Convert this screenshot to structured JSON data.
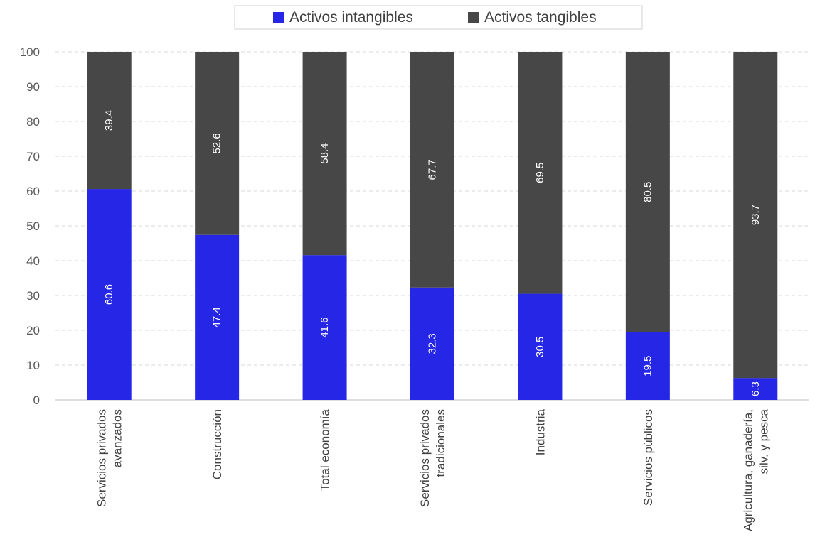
{
  "chart_data": {
    "type": "bar",
    "stacked": true,
    "orientation": "vertical",
    "categories": [
      [
        "Servicios privados",
        "avanzados"
      ],
      [
        "Construcción"
      ],
      [
        "Total economía"
      ],
      [
        "Servicios privados",
        "tradicionales"
      ],
      [
        "Industria"
      ],
      [
        "Servicios públicos"
      ],
      [
        "Agricultura, ganadería,",
        "silv. y pesca"
      ]
    ],
    "series": [
      {
        "name": "Activos intangibles",
        "color": "#2626E6",
        "values": [
          60.6,
          47.4,
          41.6,
          32.3,
          30.5,
          19.5,
          6.3
        ]
      },
      {
        "name": "Activos tangibles",
        "color": "#474747",
        "values": [
          39.4,
          52.6,
          58.4,
          67.7,
          69.5,
          80.5,
          93.7
        ]
      }
    ],
    "ylim": [
      0,
      100
    ],
    "yticks": [
      0,
      10,
      20,
      30,
      40,
      50,
      60,
      70,
      80,
      90,
      100
    ],
    "grid": true,
    "legend_position": "top-center",
    "data_labels": "rotated, inside bars",
    "category_labels": "rotated vertical"
  }
}
